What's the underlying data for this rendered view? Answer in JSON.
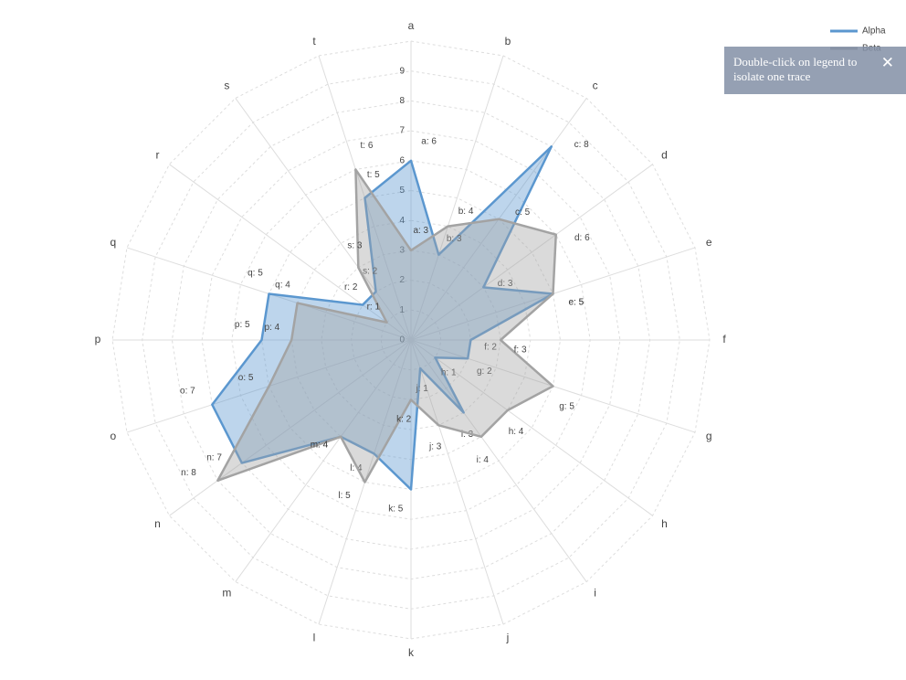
{
  "chart_data": {
    "type": "radar",
    "categories": [
      "a",
      "b",
      "c",
      "d",
      "e",
      "f",
      "g",
      "h",
      "i",
      "j",
      "k",
      "l",
      "m",
      "n",
      "o",
      "p",
      "q",
      "r",
      "s",
      "t"
    ],
    "series": [
      {
        "name": "Alpha",
        "color": "#5b97cf",
        "values": [
          6,
          3,
          8,
          3,
          5,
          2,
          2,
          1,
          3,
          1,
          5,
          4,
          4,
          7,
          7,
          5,
          5,
          2,
          2,
          5
        ],
        "value_labels": [
          "a: 6",
          "b: 3",
          "c: 8",
          "d: 3",
          "e: 5",
          "f: 2",
          "g: 2",
          "h: 1",
          "i: 3",
          "j: 1",
          "k: 5",
          "l: 4",
          "m: 4",
          "n: 7",
          "o: 7",
          "p: 5",
          "q: 5",
          "r: 2",
          "s: 2",
          "t: 5"
        ]
      },
      {
        "name": "Beta",
        "color": "#a3a3a3",
        "values": [
          3,
          4,
          5,
          6,
          5,
          3,
          5,
          4,
          4,
          3,
          2,
          5,
          4,
          8,
          5,
          4,
          4,
          1,
          3,
          6
        ],
        "value_labels": [
          "a: 3",
          "b: 4",
          "c: 5",
          "d: 6",
          "e: 5",
          "f: 3",
          "g: 5",
          "h: 4",
          "i: 4",
          "j: 3",
          "k: 2",
          "l: 5",
          "m: 4",
          "n: 8",
          "o: 5",
          "p: 4",
          "q: 4",
          "r: 1",
          "s: 3",
          "t: 6"
        ]
      }
    ],
    "ylim": [
      0,
      10
    ],
    "yticks": [
      0,
      1,
      2,
      3,
      4,
      5,
      6,
      7,
      8,
      9
    ],
    "grid": true,
    "legend_position": "top-right",
    "tooltip": "Double-click on legend to isolate one trace"
  }
}
